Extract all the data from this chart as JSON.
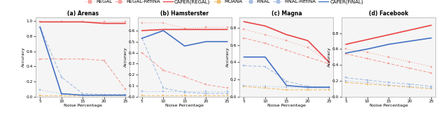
{
  "legend_labels": [
    "REGAL",
    "REGAL-RefiNA",
    "CAPER(REGAL)",
    "MOANA",
    "FiNAL",
    "FiNAL-RefiNA",
    "CAPER(FiNAL)"
  ],
  "legend_colors": [
    "#f4a49e",
    "#f4a49e",
    "#e84343",
    "#f0c070",
    "#a8c0e0",
    "#a8c0e0",
    "#4472c4"
  ],
  "legend_styles": [
    "dotted",
    "dashed",
    "solid",
    "dashed",
    "dotted",
    "dashed",
    "solid"
  ],
  "legend_markers": [
    "s",
    "s",
    null,
    "s",
    "s",
    "s",
    null
  ],
  "x_ticks": [
    5,
    10,
    15,
    20,
    25
  ],
  "x_label": "Noise Percentage",
  "y_label": "Accuracy",
  "subplots": [
    {
      "title": "(a) Arenas",
      "ylim": [
        0.0,
        1.05
      ],
      "yticks": [
        0.0,
        0.2,
        0.4,
        0.6,
        0.8,
        1.0
      ],
      "series": [
        {
          "label": "REGAL",
          "color": "#f4a49e",
          "ls": "dotted",
          "marker": "s",
          "lw": 0.8,
          "y": [
            0.99,
            0.99,
            0.99,
            0.99,
            0.99
          ]
        },
        {
          "label": "REGAL-RefiNA",
          "color": "#f4a49e",
          "ls": "dashed",
          "marker": "s",
          "lw": 0.8,
          "y": [
            0.5,
            0.5,
            0.5,
            0.48,
            0.1
          ]
        },
        {
          "label": "CAPER(REGAL)",
          "color": "#e84343",
          "ls": "solid",
          "marker": null,
          "lw": 1.2,
          "y": [
            0.99,
            0.99,
            0.99,
            0.97,
            0.97
          ]
        },
        {
          "label": "MOANA",
          "color": "#f0c070",
          "ls": "dashed",
          "marker": "s",
          "lw": 0.8,
          "y": [
            0.02,
            0.02,
            0.02,
            0.02,
            0.02
          ]
        },
        {
          "label": "FiNAL",
          "color": "#a8c0e0",
          "ls": "dotted",
          "marker": "s",
          "lw": 0.8,
          "y": [
            0.09,
            0.04,
            0.02,
            0.02,
            0.02
          ]
        },
        {
          "label": "FiNAL-RefiNA",
          "color": "#a8c0e0",
          "ls": "dashed",
          "marker": "s",
          "lw": 0.8,
          "y": [
            0.92,
            0.26,
            0.04,
            0.03,
            0.03
          ]
        },
        {
          "label": "CAPER(FiNAL)",
          "color": "#4472c4",
          "ls": "solid",
          "marker": null,
          "lw": 1.2,
          "y": [
            0.92,
            0.04,
            0.02,
            0.02,
            0.02
          ]
        }
      ]
    },
    {
      "title": "(b) Hamsterster",
      "ylim": [
        0.0,
        0.72
      ],
      "yticks": [
        0.0,
        0.1,
        0.2,
        0.3,
        0.4,
        0.5,
        0.6
      ],
      "series": [
        {
          "label": "REGAL",
          "color": "#f4a49e",
          "ls": "dotted",
          "marker": "s",
          "lw": 0.8,
          "y": [
            0.67,
            0.67,
            0.62,
            0.63,
            0.63
          ]
        },
        {
          "label": "REGAL-RefiNA",
          "color": "#f4a49e",
          "ls": "dashed",
          "marker": "s",
          "lw": 0.8,
          "y": [
            0.4,
            0.24,
            0.18,
            0.11,
            0.08
          ]
        },
        {
          "label": "CAPER(REGAL)",
          "color": "#e84343",
          "ls": "solid",
          "marker": null,
          "lw": 1.2,
          "y": [
            0.6,
            0.61,
            0.61,
            0.61,
            0.61
          ]
        },
        {
          "label": "MOANA",
          "color": "#f0c070",
          "ls": "dashed",
          "marker": "s",
          "lw": 0.8,
          "y": [
            0.01,
            0.01,
            0.01,
            0.01,
            0.01
          ]
        },
        {
          "label": "FiNAL",
          "color": "#a8c0e0",
          "ls": "dotted",
          "marker": "s",
          "lw": 0.8,
          "y": [
            0.05,
            0.05,
            0.05,
            0.05,
            0.05
          ]
        },
        {
          "label": "FiNAL-RefiNA",
          "color": "#a8c0e0",
          "ls": "dashed",
          "marker": "s",
          "lw": 0.8,
          "y": [
            0.53,
            0.08,
            0.04,
            0.03,
            0.03
          ]
        },
        {
          "label": "CAPER(FiNAL)",
          "color": "#4472c4",
          "ls": "solid",
          "marker": null,
          "lw": 1.2,
          "y": [
            0.53,
            0.6,
            0.46,
            0.5,
            0.5
          ]
        }
      ]
    },
    {
      "title": "(c) Magna",
      "ylim": [
        0.0,
        0.92
      ],
      "yticks": [
        0.0,
        0.2,
        0.4,
        0.6,
        0.8
      ],
      "series": [
        {
          "label": "REGAL",
          "color": "#f4a49e",
          "ls": "dotted",
          "marker": "s",
          "lw": 0.8,
          "y": [
            0.78,
            0.72,
            0.65,
            0.57,
            0.4
          ]
        },
        {
          "label": "REGAL-RefiNA",
          "color": "#f4a49e",
          "ls": "dashed",
          "marker": "s",
          "lw": 0.8,
          "y": [
            0.68,
            0.62,
            0.54,
            0.46,
            0.38
          ]
        },
        {
          "label": "CAPER(REGAL)",
          "color": "#e84343",
          "ls": "solid",
          "marker": null,
          "lw": 1.2,
          "y": [
            0.87,
            0.82,
            0.72,
            0.65,
            0.4
          ]
        },
        {
          "label": "MOANA",
          "color": "#f0c070",
          "ls": "dashed",
          "marker": "s",
          "lw": 0.8,
          "y": [
            0.12,
            0.1,
            0.08,
            0.08,
            0.08
          ]
        },
        {
          "label": "FiNAL",
          "color": "#a8c0e0",
          "ls": "dotted",
          "marker": "s",
          "lw": 0.8,
          "y": [
            0.13,
            0.12,
            0.11,
            0.1,
            0.1
          ]
        },
        {
          "label": "FiNAL-RefiNA",
          "color": "#a8c0e0",
          "ls": "dashed",
          "marker": "s",
          "lw": 0.8,
          "y": [
            0.36,
            0.35,
            0.18,
            0.12,
            0.11
          ]
        },
        {
          "label": "CAPER(FiNAL)",
          "color": "#4472c4",
          "ls": "solid",
          "marker": null,
          "lw": 1.2,
          "y": [
            0.46,
            0.46,
            0.13,
            0.11,
            0.11
          ]
        }
      ]
    },
    {
      "title": "(d) Facebook",
      "ylim": [
        0.0,
        1.0
      ],
      "yticks": [
        0.0,
        0.2,
        0.4,
        0.6,
        0.8
      ],
      "series": [
        {
          "label": "REGAL",
          "color": "#f4a49e",
          "ls": "dotted",
          "marker": "s",
          "lw": 0.8,
          "y": [
            0.6,
            0.56,
            0.5,
            0.44,
            0.38
          ]
        },
        {
          "label": "REGAL-RefiNA",
          "color": "#f4a49e",
          "ls": "dashed",
          "marker": "s",
          "lw": 0.8,
          "y": [
            0.54,
            0.48,
            0.42,
            0.36,
            0.3
          ]
        },
        {
          "label": "CAPER(REGAL)",
          "color": "#e84343",
          "ls": "solid",
          "marker": null,
          "lw": 1.2,
          "y": [
            0.66,
            0.72,
            0.78,
            0.84,
            0.9
          ]
        },
        {
          "label": "MOANA",
          "color": "#f0c070",
          "ls": "dashed",
          "marker": "s",
          "lw": 0.8,
          "y": [
            0.18,
            0.16,
            0.14,
            0.12,
            0.1
          ]
        },
        {
          "label": "FiNAL",
          "color": "#a8c0e0",
          "ls": "dotted",
          "marker": "s",
          "lw": 0.8,
          "y": [
            0.2,
            0.18,
            0.15,
            0.13,
            0.11
          ]
        },
        {
          "label": "FiNAL-RefiNA",
          "color": "#a8c0e0",
          "ls": "dashed",
          "marker": "s",
          "lw": 0.8,
          "y": [
            0.24,
            0.21,
            0.18,
            0.16,
            0.13
          ]
        },
        {
          "label": "CAPER(FiNAL)",
          "color": "#4472c4",
          "ls": "solid",
          "marker": null,
          "lw": 1.2,
          "y": [
            0.55,
            0.6,
            0.66,
            0.7,
            0.74
          ]
        }
      ]
    }
  ],
  "bg_color": "#f5f5f5",
  "fig_bg": "#ffffff"
}
